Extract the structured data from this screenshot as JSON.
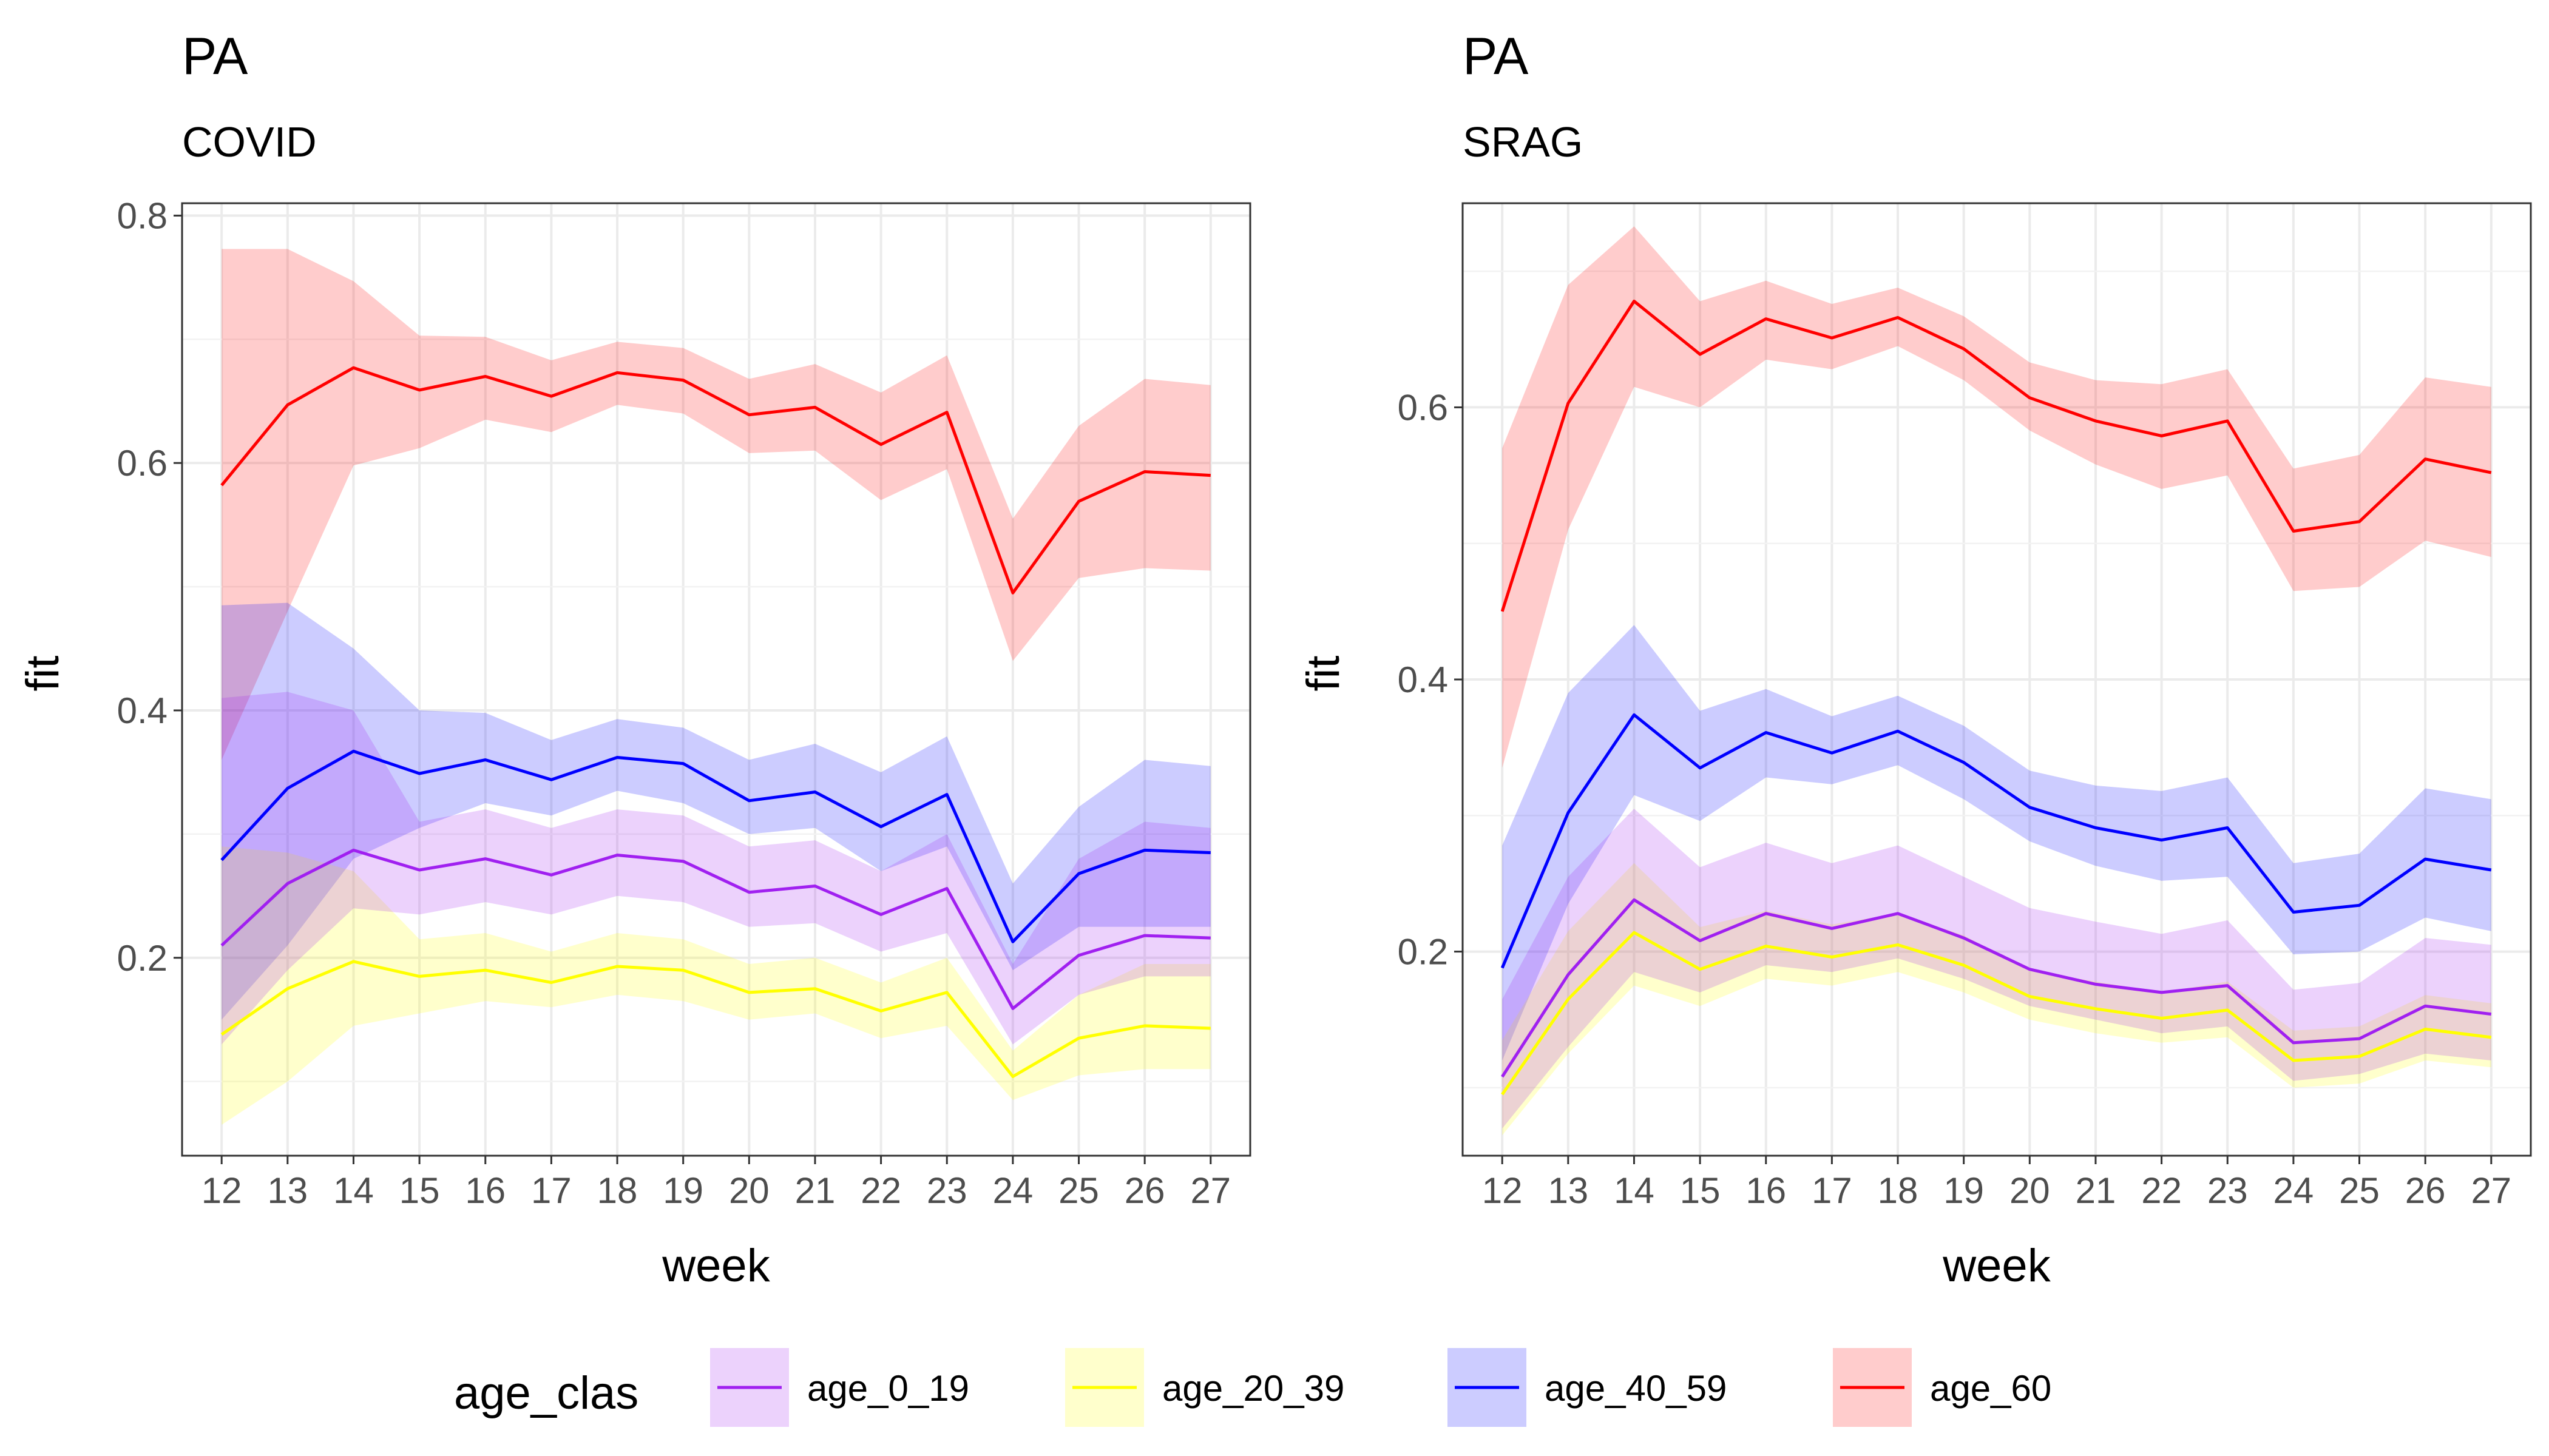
{
  "chart_data": [
    {
      "type": "line",
      "title": "PA",
      "subtitle": "COVID",
      "xlabel": "week",
      "ylabel": "fit",
      "x": [
        12,
        13,
        14,
        15,
        16,
        17,
        18,
        19,
        20,
        21,
        22,
        23,
        24,
        25,
        26,
        27
      ],
      "ylim": [
        0.04,
        0.81
      ],
      "yticks": [
        0.2,
        0.4,
        0.6,
        0.8
      ],
      "ytick_labels": [
        "0.2",
        "0.4",
        "0.6",
        "0.8"
      ],
      "grid": true,
      "series": [
        {
          "name": "age_0_19",
          "values": [
            0.21,
            0.26,
            0.287,
            0.271,
            0.28,
            0.267,
            0.283,
            0.278,
            0.253,
            0.258,
            0.235,
            0.256,
            0.159,
            0.202,
            0.218,
            0.216
          ],
          "lower": [
            0.13,
            0.19,
            0.24,
            0.235,
            0.245,
            0.235,
            0.25,
            0.245,
            0.225,
            0.228,
            0.205,
            0.22,
            0.13,
            0.17,
            0.185,
            0.185
          ],
          "upper": [
            0.41,
            0.415,
            0.4,
            0.31,
            0.32,
            0.305,
            0.32,
            0.315,
            0.29,
            0.295,
            0.27,
            0.3,
            0.195,
            0.28,
            0.31,
            0.305
          ]
        },
        {
          "name": "age_20_39",
          "values": [
            0.138,
            0.175,
            0.197,
            0.185,
            0.19,
            0.18,
            0.193,
            0.19,
            0.172,
            0.175,
            0.157,
            0.172,
            0.104,
            0.135,
            0.145,
            0.143
          ],
          "lower": [
            0.065,
            0.1,
            0.145,
            0.155,
            0.165,
            0.16,
            0.17,
            0.165,
            0.15,
            0.155,
            0.135,
            0.145,
            0.085,
            0.105,
            0.11,
            0.11
          ],
          "upper": [
            0.29,
            0.285,
            0.27,
            0.215,
            0.22,
            0.205,
            0.22,
            0.215,
            0.195,
            0.2,
            0.18,
            0.2,
            0.125,
            0.17,
            0.195,
            0.195
          ]
        },
        {
          "name": "age_40_59",
          "values": [
            0.279,
            0.337,
            0.367,
            0.349,
            0.36,
            0.344,
            0.362,
            0.357,
            0.327,
            0.334,
            0.306,
            0.332,
            0.213,
            0.268,
            0.287,
            0.285
          ],
          "lower": [
            0.15,
            0.21,
            0.28,
            0.305,
            0.325,
            0.315,
            0.335,
            0.325,
            0.3,
            0.305,
            0.27,
            0.29,
            0.19,
            0.225,
            0.225,
            0.225
          ],
          "upper": [
            0.485,
            0.487,
            0.45,
            0.4,
            0.398,
            0.376,
            0.393,
            0.386,
            0.36,
            0.373,
            0.35,
            0.379,
            0.26,
            0.322,
            0.36,
            0.355
          ]
        },
        {
          "name": "age_60",
          "values": [
            0.582,
            0.647,
            0.677,
            0.659,
            0.67,
            0.654,
            0.673,
            0.667,
            0.639,
            0.645,
            0.615,
            0.641,
            0.495,
            0.569,
            0.593,
            0.59
          ],
          "lower": [
            0.36,
            0.48,
            0.598,
            0.612,
            0.635,
            0.625,
            0.647,
            0.64,
            0.608,
            0.61,
            0.57,
            0.595,
            0.44,
            0.507,
            0.515,
            0.513
          ],
          "upper": [
            0.773,
            0.773,
            0.747,
            0.703,
            0.702,
            0.683,
            0.698,
            0.693,
            0.668,
            0.68,
            0.657,
            0.687,
            0.555,
            0.63,
            0.668,
            0.663
          ]
        }
      ]
    },
    {
      "type": "line",
      "title": "PA",
      "subtitle": "SRAG",
      "xlabel": "week",
      "ylabel": "fit",
      "x": [
        12,
        13,
        14,
        15,
        16,
        17,
        18,
        19,
        20,
        21,
        22,
        23,
        24,
        25,
        26,
        27
      ],
      "ylim": [
        0.05,
        0.75
      ],
      "yticks": [
        0.2,
        0.4,
        0.6
      ],
      "ytick_labels": [
        "0.2",
        "0.4",
        "0.6"
      ],
      "grid": true,
      "series": [
        {
          "name": "age_0_19",
          "values": [
            0.108,
            0.183,
            0.238,
            0.208,
            0.228,
            0.217,
            0.228,
            0.21,
            0.187,
            0.176,
            0.17,
            0.175,
            0.133,
            0.136,
            0.16,
            0.154
          ],
          "lower": [
            0.07,
            0.13,
            0.185,
            0.17,
            0.19,
            0.185,
            0.195,
            0.18,
            0.16,
            0.15,
            0.14,
            0.145,
            0.105,
            0.11,
            0.125,
            0.12
          ],
          "upper": [
            0.165,
            0.255,
            0.305,
            0.262,
            0.28,
            0.265,
            0.278,
            0.255,
            0.232,
            0.222,
            0.213,
            0.223,
            0.172,
            0.177,
            0.21,
            0.205
          ]
        },
        {
          "name": "age_20_39",
          "values": [
            0.095,
            0.165,
            0.214,
            0.187,
            0.204,
            0.196,
            0.205,
            0.19,
            0.167,
            0.158,
            0.151,
            0.157,
            0.12,
            0.123,
            0.143,
            0.137
          ],
          "lower": [
            0.065,
            0.125,
            0.175,
            0.16,
            0.18,
            0.175,
            0.185,
            0.17,
            0.15,
            0.14,
            0.133,
            0.137,
            0.1,
            0.103,
            0.12,
            0.115
          ],
          "upper": [
            0.135,
            0.215,
            0.265,
            0.218,
            0.23,
            0.22,
            0.228,
            0.212,
            0.186,
            0.178,
            0.17,
            0.178,
            0.142,
            0.145,
            0.168,
            0.162
          ]
        },
        {
          "name": "age_40_59",
          "values": [
            0.188,
            0.302,
            0.374,
            0.335,
            0.361,
            0.346,
            0.362,
            0.339,
            0.306,
            0.291,
            0.282,
            0.291,
            0.229,
            0.234,
            0.268,
            0.26
          ],
          "lower": [
            0.12,
            0.235,
            0.315,
            0.296,
            0.328,
            0.323,
            0.337,
            0.312,
            0.281,
            0.263,
            0.252,
            0.255,
            0.198,
            0.2,
            0.225,
            0.215
          ],
          "upper": [
            0.278,
            0.39,
            0.44,
            0.377,
            0.393,
            0.373,
            0.388,
            0.366,
            0.333,
            0.322,
            0.318,
            0.328,
            0.265,
            0.272,
            0.32,
            0.312
          ]
        },
        {
          "name": "age_60",
          "values": [
            0.45,
            0.603,
            0.678,
            0.639,
            0.665,
            0.651,
            0.666,
            0.643,
            0.607,
            0.59,
            0.579,
            0.59,
            0.509,
            0.516,
            0.562,
            0.552
          ],
          "lower": [
            0.335,
            0.51,
            0.615,
            0.6,
            0.635,
            0.628,
            0.645,
            0.62,
            0.583,
            0.558,
            0.54,
            0.55,
            0.465,
            0.468,
            0.502,
            0.49
          ],
          "upper": [
            0.57,
            0.69,
            0.733,
            0.678,
            0.693,
            0.676,
            0.688,
            0.667,
            0.633,
            0.62,
            0.617,
            0.628,
            0.555,
            0.565,
            0.622,
            0.615
          ]
        }
      ]
    }
  ],
  "legend": {
    "title": "age_clas",
    "position": "bottom",
    "items": [
      {
        "label": "age_0_19",
        "line_color": "#a020f0",
        "fill_color": "#a020f0"
      },
      {
        "label": "age_20_39",
        "line_color": "#ffff00",
        "fill_color": "#ffff00"
      },
      {
        "label": "age_40_59",
        "line_color": "#0000ff",
        "fill_color": "#0000ff"
      },
      {
        "label": "age_60",
        "line_color": "#ff0000",
        "fill_color": "#ff0000"
      }
    ]
  },
  "colors": {
    "age_0_19": "#a020f0",
    "age_20_39": "#ffff00",
    "age_40_59": "#0000ff",
    "age_60": "#ff0000"
  }
}
